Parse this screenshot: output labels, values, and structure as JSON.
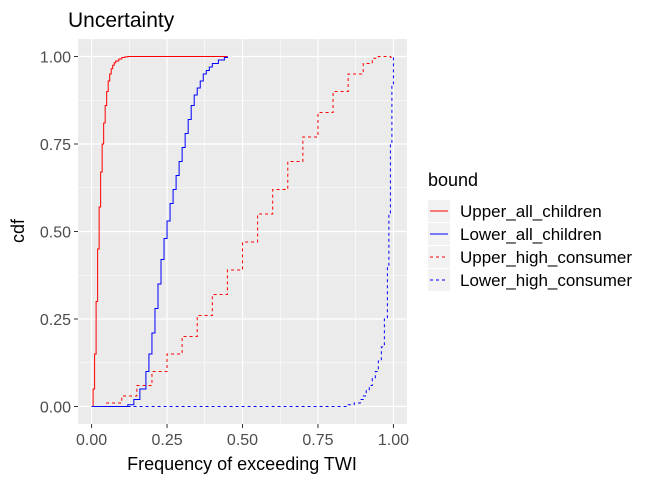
{
  "chart_data": {
    "type": "line",
    "title": "Uncertainty",
    "xlabel": "Frequency of exceeding TWI",
    "ylabel": "cdf",
    "xlim": [
      -0.045,
      1.045
    ],
    "ylim": [
      -0.05,
      1.05
    ],
    "x_ticks": [
      0,
      0.25,
      0.5,
      0.75,
      1
    ],
    "x_tick_labels": [
      "0.00",
      "0.25",
      "0.50",
      "0.75",
      "1.00"
    ],
    "y_ticks": [
      0,
      0.25,
      0.5,
      0.75,
      1
    ],
    "y_tick_labels": [
      "0.00",
      "0.25",
      "0.50",
      "0.75",
      "1.00"
    ],
    "grid": true,
    "legend": {
      "title": "bound",
      "placement": "right"
    },
    "series": [
      {
        "name": "Upper_all_children",
        "color": "#ff0000",
        "linetype": "solid",
        "x": [
          0,
          0.005,
          0.01,
          0.015,
          0.02,
          0.025,
          0.03,
          0.035,
          0.04,
          0.045,
          0.05,
          0.055,
          0.06,
          0.065,
          0.07,
          0.075,
          0.08,
          0.09,
          0.1,
          0.11,
          0.12,
          0.13,
          0.45
        ],
        "y": [
          0,
          0.05,
          0.15,
          0.3,
          0.45,
          0.57,
          0.67,
          0.75,
          0.81,
          0.86,
          0.9,
          0.93,
          0.95,
          0.965,
          0.975,
          0.982,
          0.987,
          0.993,
          0.997,
          0.999,
          1.0,
          1.0,
          1.0
        ]
      },
      {
        "name": "Lower_all_children",
        "color": "#0000ff",
        "linetype": "solid",
        "x": [
          0,
          0.1,
          0.12,
          0.14,
          0.16,
          0.18,
          0.19,
          0.2,
          0.21,
          0.22,
          0.23,
          0.24,
          0.25,
          0.26,
          0.27,
          0.28,
          0.29,
          0.3,
          0.31,
          0.32,
          0.33,
          0.34,
          0.35,
          0.36,
          0.37,
          0.38,
          0.39,
          0.4,
          0.42,
          0.44,
          0.45
        ],
        "y": [
          0,
          0.0,
          0.005,
          0.02,
          0.05,
          0.1,
          0.15,
          0.21,
          0.28,
          0.35,
          0.42,
          0.48,
          0.53,
          0.58,
          0.62,
          0.66,
          0.7,
          0.74,
          0.78,
          0.82,
          0.86,
          0.89,
          0.91,
          0.93,
          0.95,
          0.96,
          0.97,
          0.98,
          0.99,
          0.997,
          1.0
        ]
      },
      {
        "name": "Upper_high_consumer",
        "color": "#ff0000",
        "linetype": "dashed",
        "x": [
          0,
          0.05,
          0.1,
          0.15,
          0.2,
          0.25,
          0.3,
          0.35,
          0.4,
          0.45,
          0.5,
          0.55,
          0.6,
          0.65,
          0.7,
          0.75,
          0.8,
          0.85,
          0.9,
          0.93,
          0.95,
          0.97,
          0.98,
          0.99,
          1.0
        ],
        "y": [
          0,
          0.01,
          0.03,
          0.06,
          0.1,
          0.15,
          0.2,
          0.26,
          0.32,
          0.39,
          0.47,
          0.55,
          0.62,
          0.7,
          0.77,
          0.84,
          0.9,
          0.95,
          0.98,
          0.995,
          1.0,
          1.0,
          1.0,
          0.998,
          1.0
        ]
      },
      {
        "name": "Lower_high_consumer",
        "color": "#0000ff",
        "linetype": "dashed",
        "x": [
          0,
          0.8,
          0.85,
          0.87,
          0.89,
          0.9,
          0.91,
          0.92,
          0.93,
          0.94,
          0.95,
          0.96,
          0.97,
          0.98,
          0.985,
          0.99,
          0.995,
          1.0
        ],
        "y": [
          0,
          0.0,
          0.005,
          0.01,
          0.02,
          0.03,
          0.045,
          0.06,
          0.08,
          0.1,
          0.13,
          0.17,
          0.25,
          0.4,
          0.55,
          0.75,
          0.92,
          1.0
        ]
      }
    ]
  }
}
